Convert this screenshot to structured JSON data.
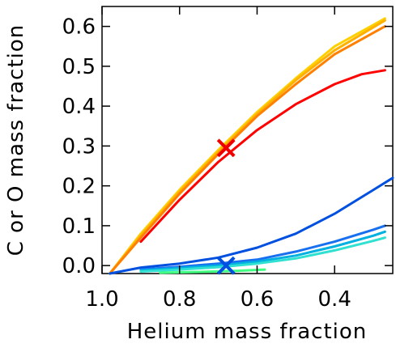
{
  "chart_data": {
    "type": "line",
    "xlabel": "Helium mass fraction",
    "ylabel": "C or O mass fraction",
    "xlim": [
      1.0,
      0.25
    ],
    "ylim": [
      -0.02,
      0.65
    ],
    "x_reversed": true,
    "x_ticks": [
      1.0,
      0.8,
      0.6,
      0.4
    ],
    "x_tick_labels": [
      "1.0",
      "0.8",
      "0.6",
      "0.4"
    ],
    "y_ticks": [
      0.0,
      0.1,
      0.2,
      0.3,
      0.4,
      0.5,
      0.6
    ],
    "y_tick_labels": [
      "0.0",
      "0.1",
      "0.2",
      "0.3",
      "0.4",
      "0.5",
      "0.6"
    ],
    "grid": false,
    "series": [
      {
        "color": "#ffd000",
        "points": [
          [
            0.98,
            -0.02
          ],
          [
            0.9,
            0.08
          ],
          [
            0.8,
            0.19
          ],
          [
            0.7,
            0.29
          ],
          [
            0.6,
            0.385
          ],
          [
            0.5,
            0.47
          ],
          [
            0.4,
            0.55
          ],
          [
            0.27,
            0.62
          ]
        ]
      },
      {
        "color": "#ffb000",
        "points": [
          [
            0.98,
            -0.02
          ],
          [
            0.9,
            0.075
          ],
          [
            0.8,
            0.185
          ],
          [
            0.7,
            0.285
          ],
          [
            0.6,
            0.38
          ],
          [
            0.5,
            0.465
          ],
          [
            0.4,
            0.54
          ],
          [
            0.27,
            0.615
          ]
        ]
      },
      {
        "color": "#ff8000",
        "points": [
          [
            0.98,
            -0.02
          ],
          [
            0.9,
            0.07
          ],
          [
            0.8,
            0.18
          ],
          [
            0.7,
            0.28
          ],
          [
            0.6,
            0.375
          ],
          [
            0.5,
            0.455
          ],
          [
            0.4,
            0.53
          ],
          [
            0.27,
            0.6
          ]
        ]
      },
      {
        "color": "#ff0000",
        "points": [
          [
            0.9,
            0.06
          ],
          [
            0.8,
            0.165
          ],
          [
            0.7,
            0.26
          ],
          [
            0.6,
            0.34
          ],
          [
            0.5,
            0.405
          ],
          [
            0.4,
            0.455
          ],
          [
            0.33,
            0.48
          ],
          [
            0.27,
            0.49
          ]
        ]
      },
      {
        "color": "#0050e0",
        "points": [
          [
            0.98,
            -0.02
          ],
          [
            0.9,
            -0.005
          ],
          [
            0.8,
            0.005
          ],
          [
            0.7,
            0.02
          ],
          [
            0.6,
            0.045
          ],
          [
            0.5,
            0.08
          ],
          [
            0.4,
            0.13
          ],
          [
            0.3,
            0.19
          ],
          [
            0.25,
            0.22
          ]
        ]
      },
      {
        "color": "#1870f0",
        "points": [
          [
            0.9,
            -0.01
          ],
          [
            0.8,
            -0.003
          ],
          [
            0.7,
            0.005
          ],
          [
            0.6,
            0.015
          ],
          [
            0.5,
            0.035
          ],
          [
            0.4,
            0.06
          ],
          [
            0.3,
            0.09
          ],
          [
            0.27,
            0.1
          ]
        ]
      },
      {
        "color": "#00b0e0",
        "points": [
          [
            0.9,
            -0.012
          ],
          [
            0.8,
            -0.006
          ],
          [
            0.7,
            0.0
          ],
          [
            0.6,
            0.01
          ],
          [
            0.5,
            0.025
          ],
          [
            0.4,
            0.048
          ],
          [
            0.3,
            0.075
          ],
          [
            0.27,
            0.085
          ]
        ]
      },
      {
        "color": "#30e0d0",
        "points": [
          [
            0.9,
            -0.015
          ],
          [
            0.8,
            -0.01
          ],
          [
            0.7,
            -0.004
          ],
          [
            0.6,
            0.005
          ],
          [
            0.5,
            0.018
          ],
          [
            0.4,
            0.038
          ],
          [
            0.3,
            0.062
          ],
          [
            0.27,
            0.07
          ]
        ]
      },
      {
        "color": "#40ff80",
        "points": [
          [
            0.85,
            -0.018
          ],
          [
            0.75,
            -0.016
          ],
          [
            0.65,
            -0.013
          ],
          [
            0.58,
            -0.01
          ]
        ]
      }
    ],
    "markers": [
      {
        "shape": "x",
        "color": "#ee0000",
        "x": 0.68,
        "y": 0.295
      },
      {
        "shape": "x",
        "color": "#0050e0",
        "x": 0.68,
        "y": 0.0
      }
    ]
  }
}
